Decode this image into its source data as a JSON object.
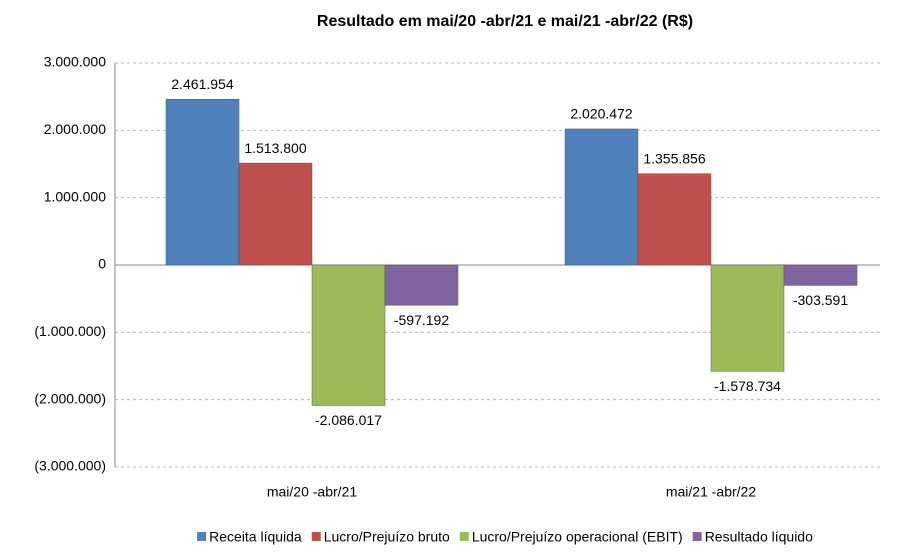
{
  "chart_data": {
    "type": "bar",
    "title": "Resultado em mai/20 -abr/21 e mai/21 -abr/22 (R$)",
    "categories": [
      "mai/20 -abr/21",
      "mai/21 -abr/22"
    ],
    "series": [
      {
        "name": "Receita líquida",
        "color": "#4f81bd",
        "values": [
          2461954,
          2020472
        ],
        "value_labels": [
          "2.461.954",
          "2.020.472"
        ]
      },
      {
        "name": "Lucro/Prejuízo bruto",
        "color": "#c0504d",
        "values": [
          1513800,
          1355856
        ],
        "value_labels": [
          "1.513.800",
          "1.355.856"
        ]
      },
      {
        "name": "Lucro/Prejuízo operacional (EBIT)",
        "color": "#9bbb59",
        "values": [
          -2086017,
          -1578734
        ],
        "value_labels": [
          "-2.086.017",
          "-1.578.734"
        ]
      },
      {
        "name": "Resultado líquido",
        "color": "#8064a2",
        "values": [
          -597192,
          -303591
        ],
        "value_labels": [
          "-597.192",
          "-303.591"
        ]
      }
    ],
    "ylim": [
      -3000000,
      3000000
    ],
    "yticks": [
      {
        "value": -3000000,
        "label": "(3.000.000)"
      },
      {
        "value": -2000000,
        "label": "(2.000.000)"
      },
      {
        "value": -1000000,
        "label": "(1.000.000)"
      },
      0,
      {
        "value": 1000000,
        "label": "1.000.000"
      },
      {
        "value": 2000000,
        "label": "2.000.000"
      },
      {
        "value": 3000000,
        "label": "3.000.000"
      }
    ],
    "grid": true,
    "legend": "bottom"
  }
}
